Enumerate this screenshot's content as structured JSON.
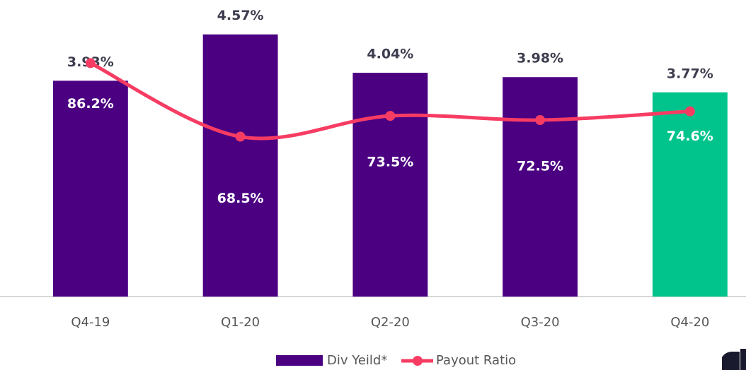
{
  "chart_data": {
    "type": "bar",
    "categories": [
      "Q4-19",
      "Q1-20",
      "Q2-20",
      "Q3-20",
      "Q4-20"
    ],
    "series": [
      {
        "name": "Div Yeild*",
        "color": "#4b0082",
        "bar_colors": [
          "#4b0082",
          "#4b0082",
          "#4b0082",
          "#4b0082",
          "#00c48c"
        ],
        "values": [
          3.93,
          4.57,
          4.04,
          3.98,
          3.77
        ],
        "value_labels": [
          "3.93%",
          "4.57%",
          "4.04%",
          "3.98%",
          "3.77%"
        ]
      },
      {
        "name": "Payout Ratio",
        "color": "#f73c63",
        "axis": "y2",
        "type": "line",
        "values": [
          86.2,
          68.5,
          73.5,
          72.5,
          74.6
        ],
        "value_labels": [
          "86.2%",
          "68.5%",
          "73.5%",
          "72.5%",
          "74.6%"
        ]
      }
    ],
    "ylim": [
      0.95,
      4.85
    ],
    "y2lim": [
      30,
      98
    ],
    "legend": "bottom"
  }
}
